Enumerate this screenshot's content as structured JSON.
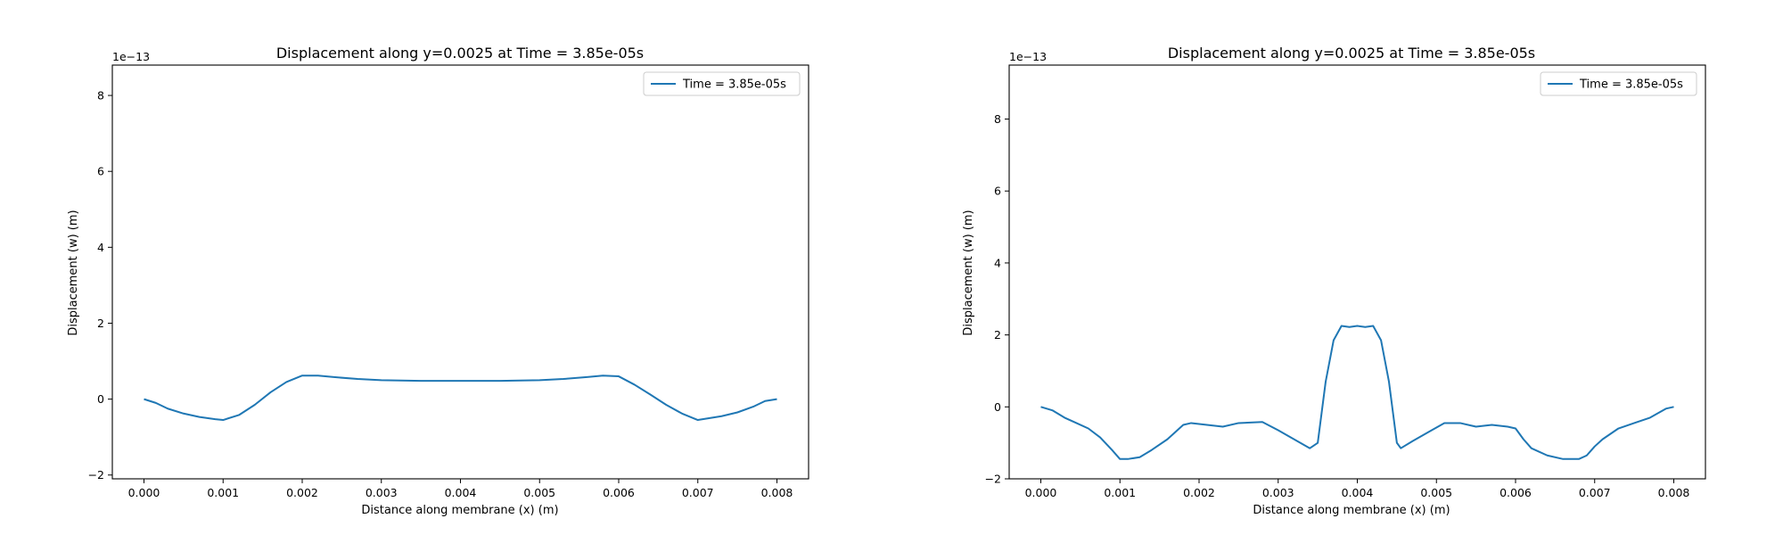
{
  "chart_data": [
    {
      "type": "line",
      "title": "Displacement along y=0.0025 at Time = 3.85e-05s",
      "xlabel": "Distance along membrane (x) (m)",
      "ylabel": "Displacement (w) (m)",
      "y_offset_label": "1e−13",
      "y_scale": 1e-13,
      "xlim": [
        -0.0004,
        0.0084
      ],
      "ylim": [
        -2.1,
        8.8
      ],
      "xticks": [
        0.0,
        0.001,
        0.002,
        0.003,
        0.004,
        0.005,
        0.006,
        0.007,
        0.008
      ],
      "xtick_labels": [
        "0.000",
        "0.001",
        "0.002",
        "0.003",
        "0.004",
        "0.005",
        "0.006",
        "0.007",
        "0.008"
      ],
      "yticks": [
        -2,
        0,
        2,
        4,
        6,
        8
      ],
      "ytick_labels": [
        "−2",
        "0",
        "2",
        "4",
        "6",
        "8"
      ],
      "grid": false,
      "legend_position": "top-right",
      "color": "#1f77b4",
      "series": [
        {
          "name": "Time = 3.85e-05s",
          "x": [
            0.0,
            0.00015,
            0.0003,
            0.0005,
            0.0007,
            0.0009,
            0.001,
            0.0012,
            0.0014,
            0.0016,
            0.0018,
            0.002,
            0.0022,
            0.0024,
            0.0027,
            0.003,
            0.0035,
            0.004,
            0.0045,
            0.005,
            0.0053,
            0.0056,
            0.0058,
            0.006,
            0.0062,
            0.0064,
            0.0066,
            0.0068,
            0.007,
            0.0073,
            0.0075,
            0.0077,
            0.00785,
            0.008
          ],
          "y": [
            0.0,
            -0.1,
            -0.25,
            -0.38,
            -0.47,
            -0.53,
            -0.55,
            -0.42,
            -0.15,
            0.18,
            0.45,
            0.62,
            0.62,
            0.58,
            0.53,
            0.5,
            0.48,
            0.48,
            0.48,
            0.5,
            0.53,
            0.58,
            0.62,
            0.6,
            0.38,
            0.12,
            -0.15,
            -0.38,
            -0.55,
            -0.45,
            -0.35,
            -0.2,
            -0.05,
            0.0
          ]
        }
      ]
    },
    {
      "type": "line",
      "title": "Displacement along y=0.0025 at Time = 3.85e-05s",
      "xlabel": "Distance along membrane (x) (m)",
      "ylabel": "Displacement (w) (m)",
      "y_offset_label": "1e−13",
      "y_scale": 1e-13,
      "xlim": [
        -0.0004,
        0.0084
      ],
      "ylim": [
        -2.0,
        9.5
      ],
      "xticks": [
        0.0,
        0.001,
        0.002,
        0.003,
        0.004,
        0.005,
        0.006,
        0.007,
        0.008
      ],
      "xtick_labels": [
        "0.000",
        "0.001",
        "0.002",
        "0.003",
        "0.004",
        "0.005",
        "0.006",
        "0.007",
        "0.008"
      ],
      "yticks": [
        -2,
        0,
        2,
        4,
        6,
        8
      ],
      "ytick_labels": [
        "−2",
        "0",
        "2",
        "4",
        "6",
        "8"
      ],
      "grid": false,
      "legend_position": "top-right",
      "color": "#1f77b4",
      "series": [
        {
          "name": "Time = 3.85e-05s",
          "x": [
            0.0,
            0.00015,
            0.0003,
            0.00045,
            0.0006,
            0.00075,
            0.0009,
            0.001,
            0.0011,
            0.00125,
            0.0014,
            0.0016,
            0.0018,
            0.0019,
            0.0021,
            0.0023,
            0.0025,
            0.0028,
            0.003,
            0.0032,
            0.0034,
            0.0035,
            0.0036,
            0.0037,
            0.0038,
            0.0039,
            0.004,
            0.0041,
            0.0042,
            0.0043,
            0.0044,
            0.0045,
            0.00455,
            0.0047,
            0.0049,
            0.0051,
            0.0053,
            0.0055,
            0.0057,
            0.0059,
            0.006,
            0.0061,
            0.0062,
            0.0064,
            0.0066,
            0.0068,
            0.0069,
            0.007,
            0.0071,
            0.0073,
            0.0075,
            0.0077,
            0.0079,
            0.008
          ],
          "y": [
            0.0,
            -0.1,
            -0.3,
            -0.45,
            -0.6,
            -0.85,
            -1.2,
            -1.45,
            -1.45,
            -1.4,
            -1.2,
            -0.9,
            -0.5,
            -0.45,
            -0.5,
            -0.55,
            -0.45,
            -0.42,
            -0.65,
            -0.9,
            -1.15,
            -1.0,
            0.7,
            1.85,
            2.25,
            2.22,
            2.25,
            2.22,
            2.25,
            1.85,
            0.7,
            -1.0,
            -1.15,
            -0.95,
            -0.7,
            -0.45,
            -0.45,
            -0.55,
            -0.5,
            -0.55,
            -0.6,
            -0.9,
            -1.15,
            -1.35,
            -1.45,
            -1.45,
            -1.35,
            -1.1,
            -0.9,
            -0.6,
            -0.45,
            -0.3,
            -0.05,
            0.0
          ]
        }
      ]
    }
  ]
}
